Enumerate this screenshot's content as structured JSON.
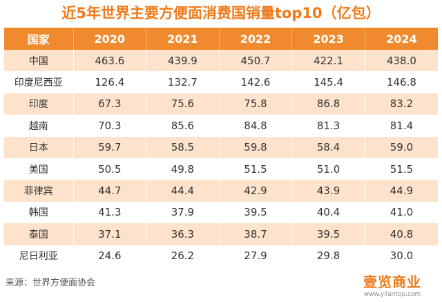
{
  "title": "近5年世界主要方便面消费国销量top10（亿包）",
  "chart_data": {
    "type": "table",
    "title": "近5年世界主要方便面消费国销量top10（亿包）",
    "header_label": "国家",
    "columns": [
      "2020",
      "2021",
      "2022",
      "2023",
      "2024"
    ],
    "rows": [
      {
        "country": "中国",
        "values": [
          "463.6",
          "439.9",
          "450.7",
          "422.1",
          "438.0"
        ]
      },
      {
        "country": "印度尼西亚",
        "values": [
          "126.4",
          "132.7",
          "142.6",
          "145.4",
          "146.8"
        ]
      },
      {
        "country": "印度",
        "values": [
          "67.3",
          "75.6",
          "75.8",
          "86.8",
          "83.2"
        ]
      },
      {
        "country": "越南",
        "values": [
          "70.3",
          "85.6",
          "84.8",
          "81.3",
          "81.4"
        ]
      },
      {
        "country": "日本",
        "values": [
          "59.7",
          "58.5",
          "59.8",
          "58.4",
          "59.0"
        ]
      },
      {
        "country": "美国",
        "values": [
          "50.5",
          "49.8",
          "51.5",
          "51.0",
          "51.5"
        ]
      },
      {
        "country": "菲律宾",
        "values": [
          "44.7",
          "44.4",
          "42.9",
          "43.9",
          "44.9"
        ]
      },
      {
        "country": "韩国",
        "values": [
          "41.3",
          "37.9",
          "39.5",
          "40.4",
          "41.0"
        ]
      },
      {
        "country": "泰国",
        "values": [
          "37.1",
          "36.3",
          "38.7",
          "39.5",
          "40.8"
        ]
      },
      {
        "country": "尼日利亚",
        "values": [
          "24.6",
          "26.2",
          "27.9",
          "29.8",
          "30.0"
        ]
      }
    ]
  },
  "source": "来源：世界方便面协会",
  "logo": {
    "name": "壹览商业",
    "url": "www.yilantop.com"
  },
  "colors": {
    "accent": "#f07a1a",
    "header_bg": "#f08a2e",
    "stripe": "#fde3cc"
  }
}
